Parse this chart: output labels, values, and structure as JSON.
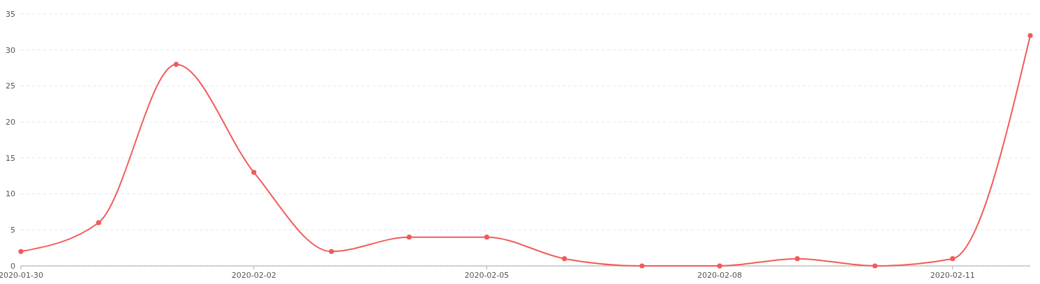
{
  "chart_data": {
    "type": "line",
    "x": [
      "2020-01-30",
      "2020-01-31",
      "2020-02-01",
      "2020-02-02",
      "2020-02-03",
      "2020-02-04",
      "2020-02-05",
      "2020-02-06",
      "2020-02-07",
      "2020-02-08",
      "2020-02-09",
      "2020-02-10",
      "2020-02-11",
      "2020-02-12"
    ],
    "series": [
      {
        "color": "#f25a5a",
        "values": [
          2,
          6,
          28,
          13,
          2,
          4,
          4,
          1,
          0,
          0,
          1,
          0,
          1,
          32
        ]
      }
    ],
    "xlim": [
      "2020-01-30",
      "2020-02-12"
    ],
    "xticks": [
      "2020-01-30",
      "2020-02-02",
      "2020-02-05",
      "2020-02-08",
      "2020-02-11"
    ],
    "ylim": [
      0,
      35
    ],
    "yticks": [
      0,
      5,
      10,
      15,
      20,
      25,
      30,
      35
    ],
    "grid": "y",
    "marker": "circle",
    "line_style": "solid"
  }
}
